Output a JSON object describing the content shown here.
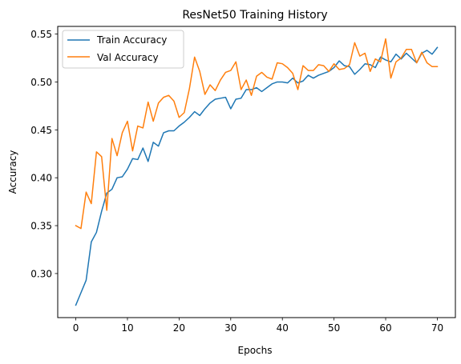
{
  "chart_data": {
    "type": "line",
    "title": "ResNet50 Training History",
    "xlabel": "Epochs",
    "ylabel": "Accuracy",
    "xlim": [
      -3.5,
      73.5
    ],
    "ylim": [
      0.254,
      0.558
    ],
    "xticks": [
      0,
      10,
      20,
      30,
      40,
      50,
      60,
      70
    ],
    "yticks": [
      0.3,
      0.35,
      0.4,
      0.45,
      0.5,
      0.55
    ],
    "grid": false,
    "legend_position": "upper-left",
    "x": [
      0,
      1,
      2,
      3,
      4,
      5,
      6,
      7,
      8,
      9,
      10,
      11,
      12,
      13,
      14,
      15,
      16,
      17,
      18,
      19,
      20,
      21,
      22,
      23,
      24,
      25,
      26,
      27,
      28,
      29,
      30,
      31,
      32,
      33,
      34,
      35,
      36,
      37,
      38,
      39,
      40,
      41,
      42,
      43,
      44,
      45,
      46,
      47,
      48,
      49,
      50,
      51,
      52,
      53,
      54,
      55,
      56,
      57,
      58,
      59,
      60,
      61,
      62,
      63,
      64,
      65,
      66,
      67,
      68,
      69,
      70
    ],
    "series": [
      {
        "name": "Train Accuracy",
        "color": "#1f77b4",
        "values": [
          0.267,
          0.28,
          0.293,
          0.333,
          0.343,
          0.365,
          0.384,
          0.388,
          0.4,
          0.401,
          0.409,
          0.42,
          0.419,
          0.431,
          0.417,
          0.437,
          0.433,
          0.447,
          0.449,
          0.449,
          0.454,
          0.458,
          0.463,
          0.469,
          0.465,
          0.472,
          0.478,
          0.482,
          0.483,
          0.484,
          0.472,
          0.482,
          0.483,
          0.492,
          0.492,
          0.494,
          0.49,
          0.494,
          0.498,
          0.5,
          0.5,
          0.499,
          0.504,
          0.499,
          0.501,
          0.507,
          0.504,
          0.507,
          0.509,
          0.511,
          0.515,
          0.522,
          0.517,
          0.516,
          0.508,
          0.513,
          0.519,
          0.518,
          0.515,
          0.526,
          0.523,
          0.521,
          0.529,
          0.524,
          0.53,
          0.525,
          0.52,
          0.53,
          0.533,
          0.529,
          0.536
        ]
      },
      {
        "name": "Val Accuracy",
        "color": "#ff7f0e",
        "values": [
          0.35,
          0.347,
          0.385,
          0.373,
          0.427,
          0.422,
          0.366,
          0.441,
          0.423,
          0.447,
          0.459,
          0.428,
          0.454,
          0.452,
          0.479,
          0.459,
          0.478,
          0.484,
          0.486,
          0.48,
          0.463,
          0.468,
          0.493,
          0.526,
          0.511,
          0.487,
          0.497,
          0.491,
          0.502,
          0.51,
          0.512,
          0.521,
          0.492,
          0.502,
          0.486,
          0.506,
          0.51,
          0.505,
          0.503,
          0.52,
          0.519,
          0.515,
          0.509,
          0.492,
          0.517,
          0.512,
          0.512,
          0.518,
          0.517,
          0.511,
          0.519,
          0.513,
          0.514,
          0.518,
          0.541,
          0.527,
          0.53,
          0.511,
          0.524,
          0.521,
          0.545,
          0.504,
          0.521,
          0.525,
          0.534,
          0.534,
          0.52,
          0.531,
          0.52,
          0.516,
          0.516
        ]
      }
    ]
  }
}
